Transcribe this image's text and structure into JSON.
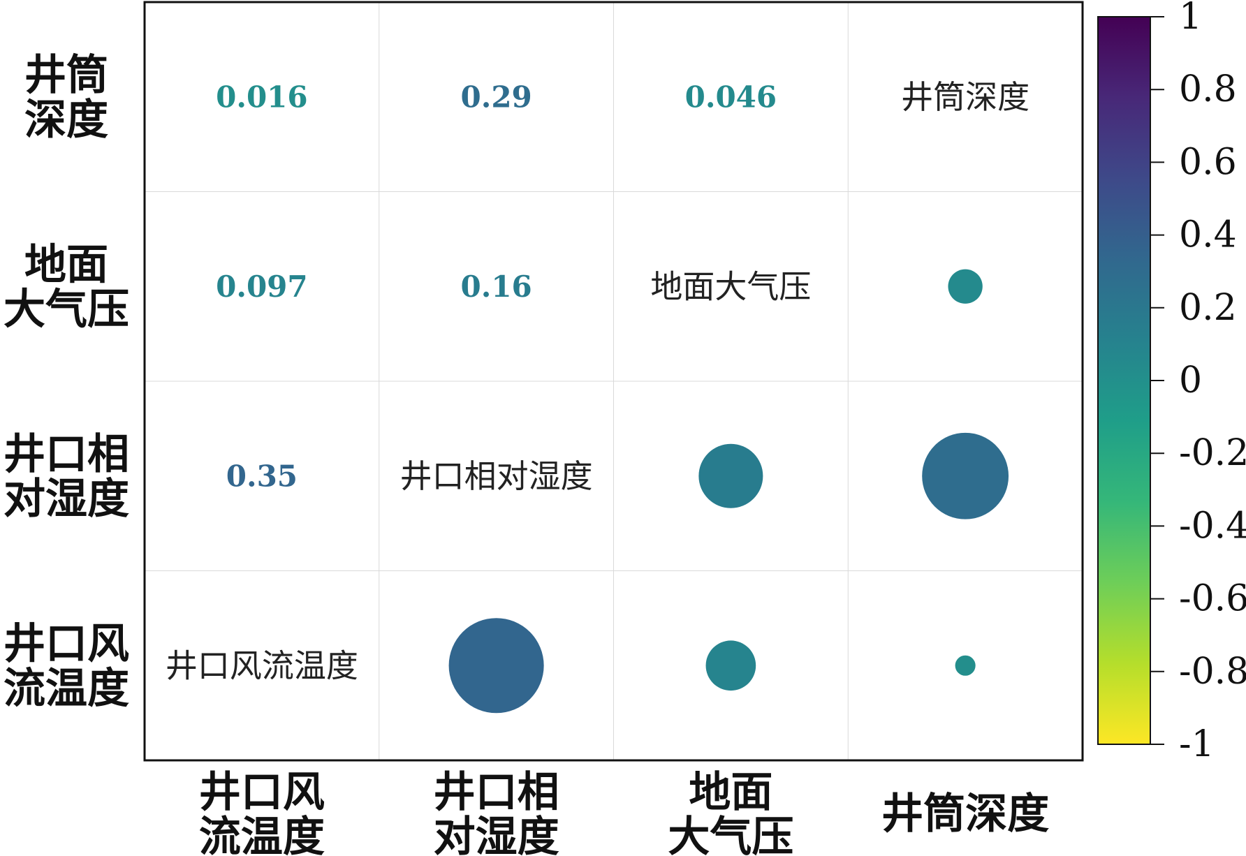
{
  "chart_data": {
    "type": "correlation-matrix",
    "variables": [
      "井口风流温度",
      "井口相对湿度",
      "地面大气压",
      "井筒深度"
    ],
    "row_labels": [
      [
        "井筒",
        "深度"
      ],
      [
        "地面",
        "大气压"
      ],
      [
        "井口相",
        "对湿度"
      ],
      [
        "井口风",
        "流温度"
      ]
    ],
    "col_labels": [
      [
        "井口风",
        "流温度"
      ],
      [
        "井口相",
        "对湿度"
      ],
      [
        "地面",
        "大气压"
      ],
      [
        "井筒深度"
      ]
    ],
    "diagonal_labels": [
      "井口风流温度",
      "井口相对湿度",
      "地面大气压",
      "井筒深度"
    ],
    "correlations": [
      {
        "a": "井口风流温度",
        "b": "井口相对湿度",
        "value": 0.35,
        "label": "0.35"
      },
      {
        "a": "井口风流温度",
        "b": "地面大气压",
        "value": 0.097,
        "label": "0.097"
      },
      {
        "a": "井口风流温度",
        "b": "井筒深度",
        "value": 0.016,
        "label": "0.016"
      },
      {
        "a": "井口相对湿度",
        "b": "地面大气压",
        "value": 0.16,
        "label": "0.16"
      },
      {
        "a": "井口相对湿度",
        "b": "井筒深度",
        "value": 0.29,
        "label": "0.29"
      },
      {
        "a": "地面大气压",
        "b": "井筒深度",
        "value": 0.046,
        "label": "0.046"
      }
    ],
    "colorbar": {
      "range": [
        -1,
        1
      ],
      "ticks": [
        "1",
        "0.8",
        "0.6",
        "0.4",
        "0.2",
        "0",
        "-0.2",
        "-0.4",
        "-0.6",
        "-0.8",
        "-1"
      ],
      "colormap": "viridis (reversed: -1 yellow, 1 dark purple)",
      "stops": [
        "#fde725",
        "#b5de2b",
        "#6ece58",
        "#35b779",
        "#1f9e89",
        "#26828e",
        "#31688e",
        "#3e4989",
        "#482878",
        "#440154"
      ]
    },
    "grid": true
  }
}
